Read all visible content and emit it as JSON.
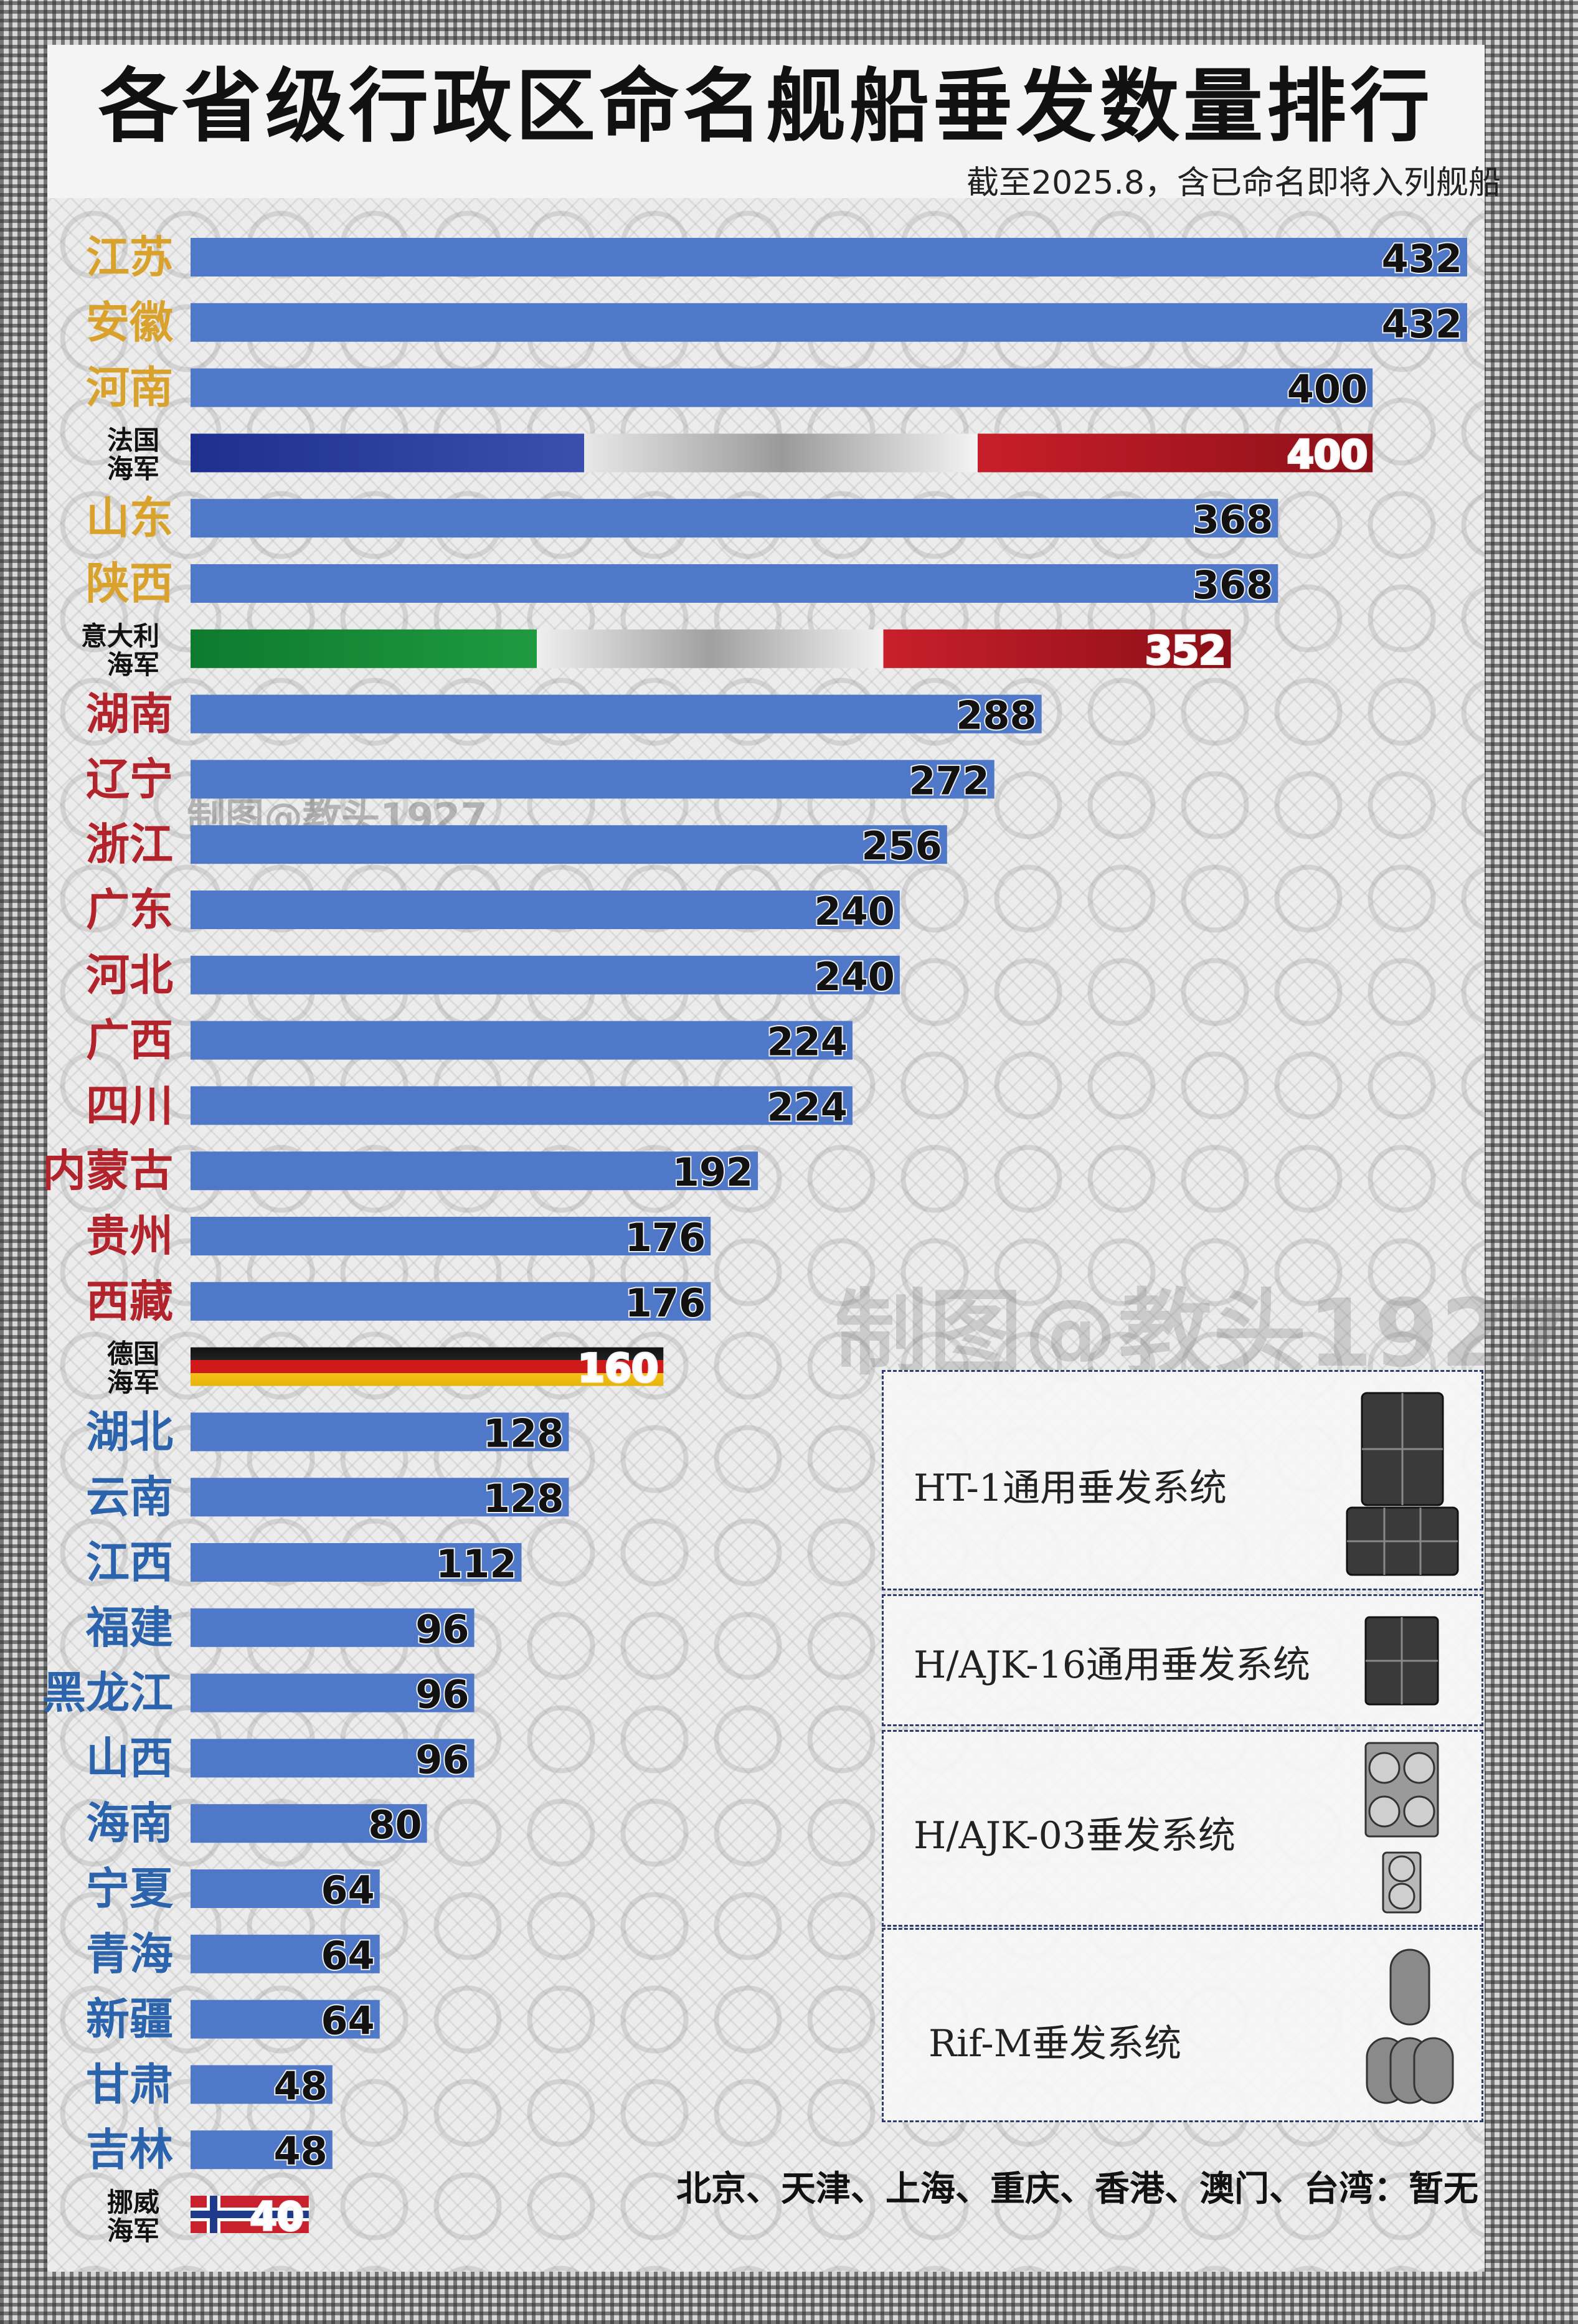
{
  "title": "各省级行政区命名舰船垂发数量排行",
  "subtitle": "截至2025.8，含已命名即将入列舰船",
  "watermark": "制图@教头1927",
  "footnote": "北京、天津、上海、重庆、香港、澳门、台湾：暂无",
  "colors": {
    "bar": "#4f78c9",
    "label_gold": "#d9a22c",
    "label_red": "#b2232c",
    "label_blue": "#2b63ad",
    "navy_label": "#111111"
  },
  "legend": [
    {
      "label": "HT-1通用垂发系统",
      "icon": "ht1-launcher-icon"
    },
    {
      "label": "H/AJK-16通用垂发系统",
      "icon": "hajk16-launcher-icon"
    },
    {
      "label": "H/AJK-03垂发系统",
      "icon": "hajk03-launcher-icon"
    },
    {
      "label": "Rif-M垂发系统",
      "icon": "rifm-launcher-icon"
    }
  ],
  "chart_data": {
    "type": "bar",
    "orientation": "horizontal",
    "title": "各省级行政区命名舰船垂发数量排行",
    "categories": [
      "江苏",
      "安徽",
      "河南",
      "法国海军",
      "山东",
      "陕西",
      "意大利海军",
      "湖南",
      "辽宁",
      "浙江",
      "广东",
      "河北",
      "广西",
      "四川",
      "内蒙古",
      "贵州",
      "西藏",
      "德国海军",
      "湖北",
      "云南",
      "江西",
      "福建",
      "黑龙江",
      "山西",
      "海南",
      "宁夏",
      "青海",
      "新疆",
      "甘肃",
      "吉林",
      "挪威海军"
    ],
    "category_display": [
      "江苏",
      "安徽",
      "河南",
      "法国\n海军",
      "山东",
      "陕西",
      "意大利\n海军",
      "湖南",
      "辽宁",
      "浙江",
      "广东",
      "河北",
      "广西",
      "四川",
      "内蒙古",
      "贵州",
      "西藏",
      "德国\n海军",
      "湖北",
      "云南",
      "江西",
      "福建",
      "黑龙江",
      "山西",
      "海南",
      "宁夏",
      "青海",
      "新疆",
      "甘肃",
      "吉林",
      "挪威\n海军"
    ],
    "values": [
      432,
      432,
      400,
      400,
      368,
      368,
      352,
      288,
      272,
      256,
      240,
      240,
      224,
      224,
      192,
      176,
      176,
      160,
      128,
      128,
      112,
      96,
      96,
      96,
      80,
      64,
      64,
      64,
      48,
      48,
      40
    ],
    "label_color": [
      "gold",
      "gold",
      "gold",
      "navy",
      "gold",
      "gold",
      "navy",
      "red",
      "red",
      "red",
      "red",
      "red",
      "red",
      "red",
      "red",
      "red",
      "red",
      "navy",
      "blue",
      "blue",
      "blue",
      "blue",
      "blue",
      "blue",
      "blue",
      "blue",
      "blue",
      "blue",
      "blue",
      "blue",
      "navy"
    ],
    "flag": [
      "",
      "",
      "",
      "france",
      "",
      "",
      "italy",
      "",
      "",
      "",
      "",
      "",
      "",
      "",
      "",
      "",
      "",
      "germany",
      "",
      "",
      "",
      "",
      "",
      "",
      "",
      "",
      "",
      "",
      "",
      "",
      "norway"
    ],
    "xlim": [
      0,
      432
    ],
    "grid": false,
    "legend_position": "bottom-right"
  }
}
